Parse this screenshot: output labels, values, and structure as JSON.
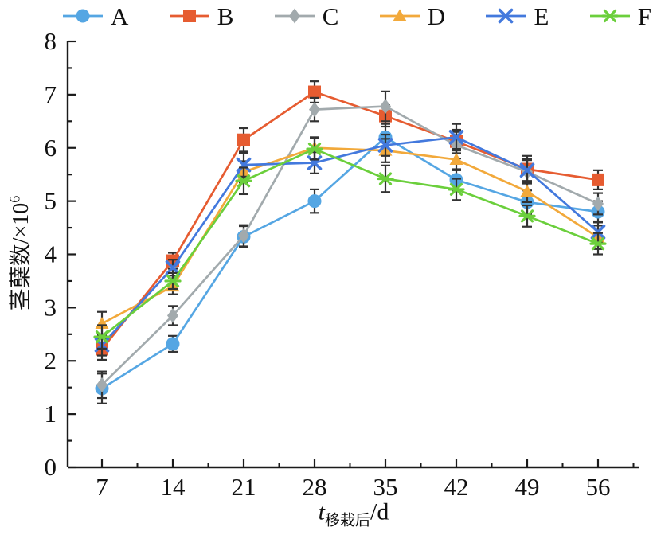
{
  "chart_data": {
    "type": "line",
    "title": "",
    "categories": [
      7,
      14,
      21,
      28,
      35,
      42,
      49,
      56
    ],
    "xlabel": {
      "prefix": "t",
      "subscript": "移栽后",
      "suffix": "/d"
    },
    "ylabel": {
      "main": "茎蘖数/×10",
      "superscript": "6"
    },
    "ylim": [
      0,
      8
    ],
    "y_major_step": 1,
    "y_minor_step": 0.5,
    "x_minor_offset": 3.5,
    "grid": false,
    "legend_position": "top",
    "axis_color": "#1a1a1a",
    "errorbar_color": "#333333",
    "series": [
      {
        "name": "A",
        "marker": "circle",
        "color": "#55a6e3",
        "values": [
          1.48,
          2.32,
          4.33,
          5.0,
          6.2,
          5.4,
          4.98,
          4.8
        ],
        "errors": [
          0.28,
          0.15,
          0.2,
          0.22,
          0.25,
          0.2,
          0.22,
          0.2
        ]
      },
      {
        "name": "B",
        "marker": "square",
        "color": "#e65c31",
        "values": [
          2.22,
          3.88,
          6.15,
          7.05,
          6.6,
          6.12,
          5.6,
          5.4
        ],
        "errors": [
          0.2,
          0.15,
          0.22,
          0.2,
          0.2,
          0.22,
          0.25,
          0.18
        ]
      },
      {
        "name": "C",
        "marker": "diamond",
        "color": "#a2aaad",
        "values": [
          1.55,
          2.85,
          4.35,
          6.72,
          6.78,
          6.05,
          5.55,
          4.95
        ],
        "errors": [
          0.25,
          0.18,
          0.2,
          0.22,
          0.28,
          0.25,
          0.22,
          0.2
        ]
      },
      {
        "name": "D",
        "marker": "triangle",
        "color": "#f2a93b",
        "values": [
          2.7,
          3.4,
          5.55,
          6.0,
          5.95,
          5.78,
          5.18,
          4.32
        ],
        "errors": [
          0.22,
          0.15,
          0.2,
          0.2,
          0.22,
          0.2,
          0.2,
          0.22
        ]
      },
      {
        "name": "E",
        "marker": "x",
        "color": "#4379dd",
        "values": [
          2.3,
          3.75,
          5.68,
          5.72,
          6.05,
          6.2,
          5.58,
          4.42
        ],
        "errors": [
          0.2,
          0.15,
          0.22,
          0.2,
          0.2,
          0.25,
          0.22,
          0.2
        ]
      },
      {
        "name": "F",
        "marker": "asterisk",
        "color": "#6bcf3c",
        "values": [
          2.45,
          3.5,
          5.38,
          5.98,
          5.42,
          5.22,
          4.72,
          4.2
        ],
        "errors": [
          0.22,
          0.15,
          0.25,
          0.2,
          0.25,
          0.2,
          0.2,
          0.2
        ]
      }
    ]
  }
}
